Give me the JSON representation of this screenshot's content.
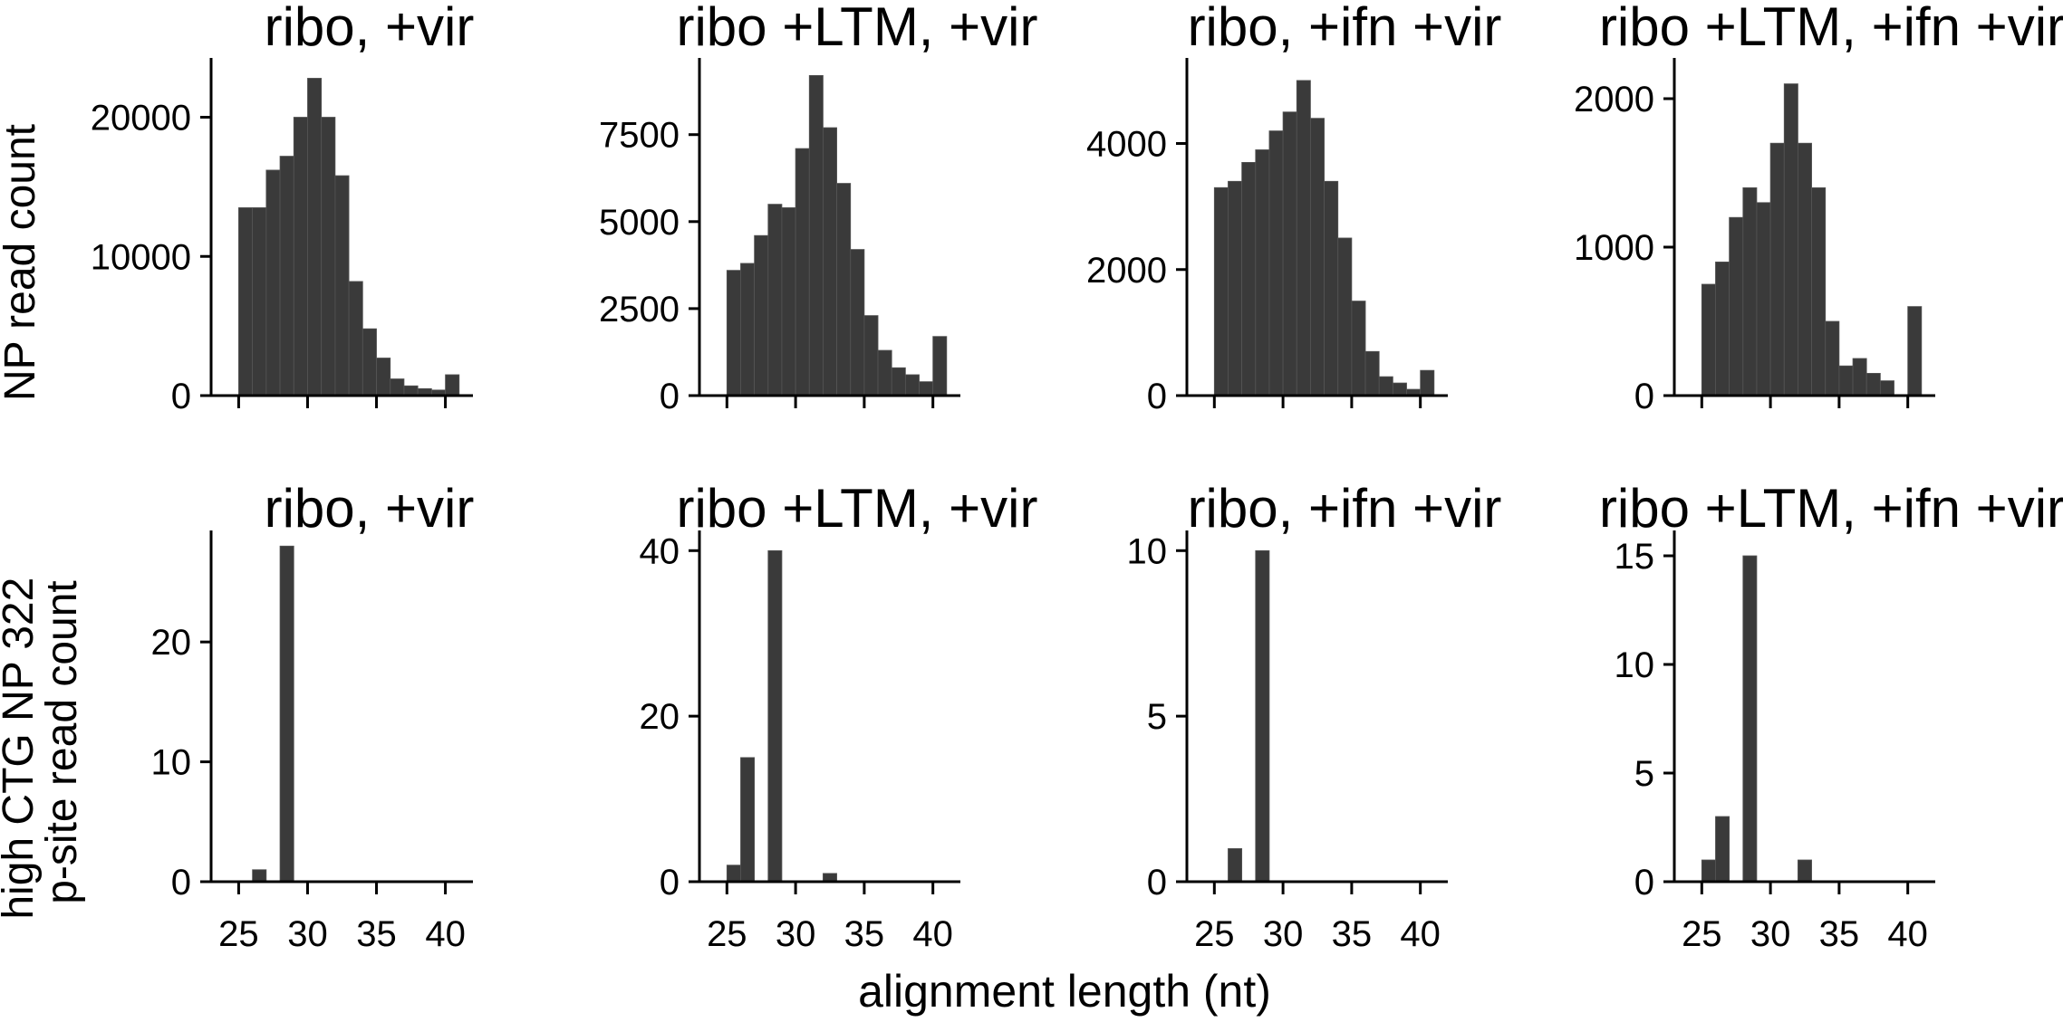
{
  "figure": {
    "row_ylabels": [
      [
        "NP read count"
      ],
      [
        "high CTG NP 322",
        "p-site read count"
      ]
    ],
    "xlabel": "alignment length (nt)",
    "bar_color": "#3a3a3a"
  },
  "chart_data": [
    {
      "type": "bar",
      "title": "ribo, +vir",
      "xlabel": "",
      "ylabel": "NP read count",
      "bin_width": 1,
      "x": [
        25,
        26,
        27,
        28,
        29,
        30,
        31,
        32,
        33,
        34,
        35,
        36,
        37,
        38,
        39,
        40
      ],
      "values": [
        13500,
        13500,
        16200,
        17200,
        20000,
        22800,
        20000,
        15800,
        8200,
        4800,
        2700,
        1200,
        700,
        500,
        400,
        1500
      ],
      "xlim": [
        23,
        42
      ],
      "ylim": [
        0,
        24000
      ],
      "yticks": [
        0,
        10000,
        20000
      ],
      "xticks": [
        25,
        30,
        35,
        40
      ],
      "xticks_labeled": false,
      "grid": false
    },
    {
      "type": "bar",
      "title": "ribo +LTM, +vir",
      "xlabel": "",
      "ylabel": "",
      "bin_width": 1,
      "x": [
        25,
        26,
        27,
        28,
        29,
        30,
        31,
        32,
        33,
        34,
        35,
        36,
        37,
        38,
        39,
        40
      ],
      "values": [
        3600,
        3800,
        4600,
        5500,
        5400,
        7100,
        9200,
        7700,
        6100,
        4200,
        2300,
        1300,
        800,
        600,
        400,
        1700
      ],
      "xlim": [
        23,
        42
      ],
      "ylim": [
        0,
        9600
      ],
      "yticks": [
        0,
        2500,
        5000,
        7500
      ],
      "xticks": [
        25,
        30,
        35,
        40
      ],
      "xticks_labeled": false,
      "grid": false
    },
    {
      "type": "bar",
      "title": "ribo, +ifn +vir",
      "xlabel": "",
      "ylabel": "",
      "bin_width": 1,
      "x": [
        25,
        26,
        27,
        28,
        29,
        30,
        31,
        32,
        33,
        34,
        35,
        36,
        37,
        38,
        39,
        40
      ],
      "values": [
        3300,
        3400,
        3700,
        3900,
        4200,
        4500,
        5000,
        4400,
        3400,
        2500,
        1500,
        700,
        300,
        200,
        100,
        400
      ],
      "xlim": [
        23,
        42
      ],
      "ylim": [
        0,
        5300
      ],
      "yticks": [
        0,
        2000,
        4000
      ],
      "xticks": [
        25,
        30,
        35,
        40
      ],
      "xticks_labeled": false,
      "grid": false
    },
    {
      "type": "bar",
      "title": "ribo +LTM, +ifn +vir",
      "xlabel": "",
      "ylabel": "",
      "bin_width": 1,
      "x": [
        25,
        26,
        27,
        28,
        29,
        30,
        31,
        32,
        33,
        34,
        35,
        36,
        37,
        38,
        39,
        40
      ],
      "values": [
        750,
        900,
        1200,
        1400,
        1300,
        1700,
        2100,
        1700,
        1400,
        500,
        200,
        250,
        150,
        100,
        0,
        600
      ],
      "xlim": [
        23,
        42
      ],
      "ylim": [
        0,
        2250
      ],
      "yticks": [
        0,
        1000,
        2000
      ],
      "xticks": [
        25,
        30,
        35,
        40
      ],
      "xticks_labeled": false,
      "grid": false
    },
    {
      "type": "bar",
      "title": "ribo, +vir",
      "xlabel": "",
      "ylabel": "high CTG NP 322 p-site read count",
      "bin_width": 1,
      "x": [
        25,
        26,
        27,
        28,
        29,
        30,
        31,
        32,
        33,
        34,
        35,
        36,
        37,
        38,
        39,
        40
      ],
      "values": [
        0,
        1,
        0,
        28,
        0,
        0,
        0,
        0,
        0,
        0,
        0,
        0,
        0,
        0,
        0,
        0
      ],
      "xlim": [
        23,
        42
      ],
      "ylim": [
        0,
        29
      ],
      "yticks": [
        0,
        10,
        20
      ],
      "xticks": [
        25,
        30,
        35,
        40
      ],
      "xticks_labeled": true,
      "grid": false
    },
    {
      "type": "bar",
      "title": "ribo +LTM, +vir",
      "xlabel": "",
      "ylabel": "",
      "bin_width": 1,
      "x": [
        25,
        26,
        27,
        28,
        29,
        30,
        31,
        32,
        33,
        34,
        35,
        36,
        37,
        38,
        39,
        40
      ],
      "values": [
        2,
        15,
        0,
        40,
        0,
        0,
        0,
        1,
        0,
        0,
        0,
        0,
        0,
        0,
        0,
        0
      ],
      "xlim": [
        23,
        42
      ],
      "ylim": [
        0,
        42
      ],
      "yticks": [
        0,
        20,
        40
      ],
      "xticks": [
        25,
        30,
        35,
        40
      ],
      "xticks_labeled": true,
      "grid": false
    },
    {
      "type": "bar",
      "title": "ribo, +ifn +vir",
      "xlabel": "",
      "ylabel": "",
      "bin_width": 1,
      "x": [
        25,
        26,
        27,
        28,
        29,
        30,
        31,
        32,
        33,
        34,
        35,
        36,
        37,
        38,
        39,
        40
      ],
      "values": [
        0,
        1,
        0,
        10,
        0,
        0,
        0,
        0,
        0,
        0,
        0,
        0,
        0,
        0,
        0,
        0
      ],
      "xlim": [
        23,
        42
      ],
      "ylim": [
        0,
        10.5
      ],
      "yticks": [
        0,
        5,
        10
      ],
      "xticks": [
        25,
        30,
        35,
        40
      ],
      "xticks_labeled": true,
      "grid": false
    },
    {
      "type": "bar",
      "title": "ribo +LTM, +ifn +vir",
      "xlabel": "",
      "ylabel": "",
      "bin_width": 1,
      "x": [
        25,
        26,
        27,
        28,
        29,
        30,
        31,
        32,
        33,
        34,
        35,
        36,
        37,
        38,
        39,
        40
      ],
      "values": [
        1,
        3,
        0,
        15,
        0,
        0,
        0,
        1,
        0,
        0,
        0,
        0,
        0,
        0,
        0,
        0
      ],
      "xlim": [
        23,
        42
      ],
      "ylim": [
        0,
        16
      ],
      "yticks": [
        0,
        5,
        10,
        15
      ],
      "xticks": [
        25,
        30,
        35,
        40
      ],
      "xticks_labeled": true,
      "grid": false
    }
  ]
}
